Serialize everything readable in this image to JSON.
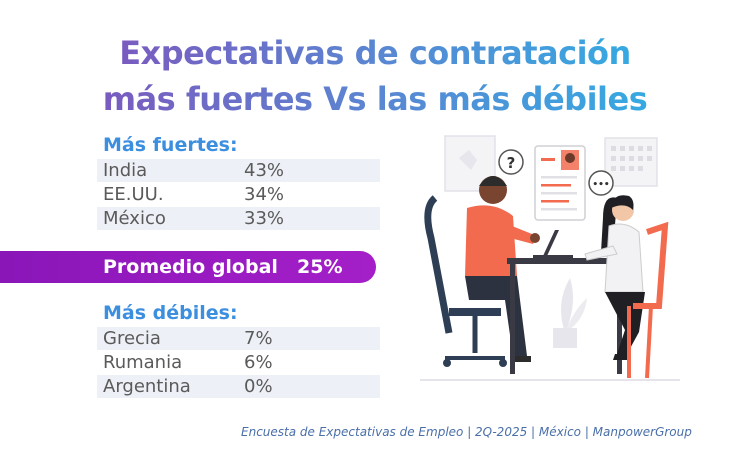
{
  "title": {
    "line1": "Expectativas de contratación",
    "line2": "más fuertes Vs las más débiles"
  },
  "strongest": {
    "label": "Más fuertes:",
    "rows": [
      {
        "country": "India",
        "value": "43%"
      },
      {
        "country": "EE.UU.",
        "value": "34%"
      },
      {
        "country": "México",
        "value": "33%"
      }
    ]
  },
  "global": {
    "label": "Promedio global",
    "value": "25%"
  },
  "weakest": {
    "label": "Más débiles:",
    "rows": [
      {
        "country": "Grecia",
        "value": "7%"
      },
      {
        "country": "Rumania",
        "value": "6%"
      },
      {
        "country": "Argentina",
        "value": "0%"
      }
    ]
  },
  "footer": "Encuesta de Expectativas de Empleo | 2Q-2025 | México | ManpowerGroup",
  "illustration": {
    "question_mark": "?",
    "ellipsis": "•••"
  },
  "colors": {
    "title_gradient_start": "#7a5bbf",
    "title_gradient_end": "#36a9e1",
    "section_label": "#3b8fde",
    "global_bar": "#9b1bc4",
    "accent_orange": "#f26b4f"
  }
}
